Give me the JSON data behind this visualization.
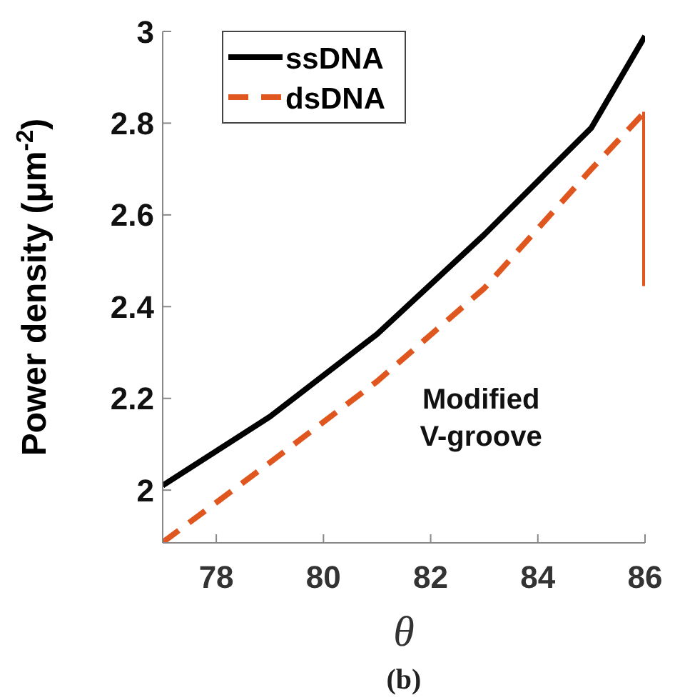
{
  "chart_data": {
    "type": "line",
    "xlabel": "θ",
    "ylabel": "Power density (μm$^{-2}$)",
    "xlim": [
      77,
      86
    ],
    "xticks": [
      78,
      80,
      82,
      84,
      86
    ],
    "ylim": [
      1.885,
      3
    ],
    "yticks": [
      2,
      2.2,
      2.4,
      2.6,
      2.8,
      3
    ],
    "series": [
      {
        "name": "ssDNA",
        "color": "#000000",
        "line_style": "solid",
        "x": [
          77,
          79,
          81,
          83,
          85,
          86
        ],
        "values": [
          2.01,
          2.16,
          2.34,
          2.557,
          2.79,
          2.99
        ]
      },
      {
        "name": "dsDNA",
        "color": "#e0561f",
        "line_style": "dashed",
        "x": [
          77,
          79,
          81,
          83,
          85,
          86
        ],
        "values": [
          1.886,
          2.06,
          2.237,
          2.44,
          2.7,
          2.825
        ]
      },
      {
        "color": "#e0561f",
        "line_style": "solid",
        "x": [
          86,
          86
        ],
        "values": [
          2.825,
          2.445
        ]
      }
    ],
    "annotations": [
      "Modified V-groove",
      "(b)"
    ],
    "legend": "top left",
    "grid": false,
    "marker": "none"
  }
}
